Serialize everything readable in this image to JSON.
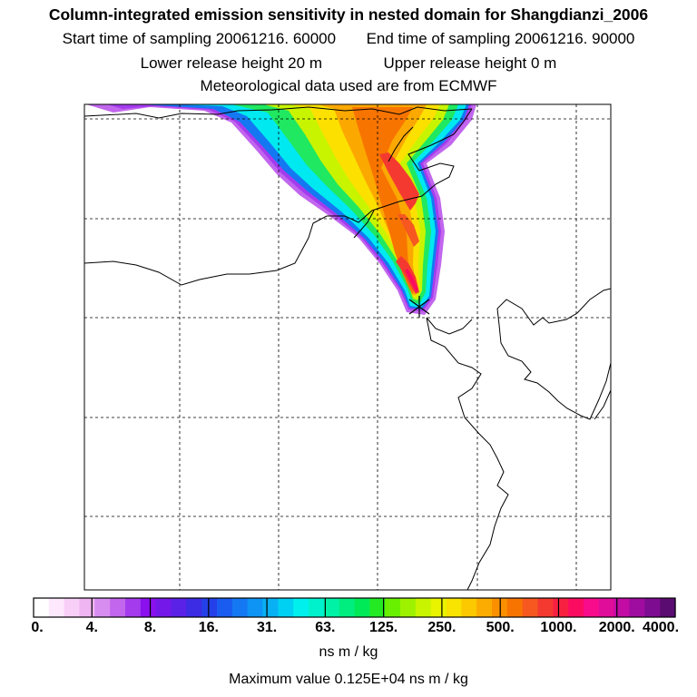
{
  "title": {
    "line1": "Column-integrated emission sensitivity in nested domain for Shangdianzi_2006",
    "start_label": "Start time of sampling 20061216. 60000",
    "end_label": "End time of sampling 20061216. 90000",
    "lower_label": "Lower release height   20 m",
    "upper_label": "Upper release height    0 m",
    "met_label": "Meteorological data used are from ECMWF"
  },
  "map": {
    "release_site": "Shangdianzi",
    "marker": "asterisk-marker"
  },
  "legend": {
    "unit": "ns m / kg",
    "max_value_text": "Maximum value  0.125E+04 ns m / kg",
    "ticks": [
      "0.",
      "4.",
      "8.",
      "16.",
      "31.",
      "63.",
      "125.",
      "250.",
      "500.",
      "1000.",
      "2000.",
      "4000."
    ],
    "colors": [
      "#ffffff",
      "#fde8fd",
      "#f7cff7",
      "#efb4f2",
      "#d78df0",
      "#c266ee",
      "#a43cee",
      "#8a10ee",
      "#7418ea",
      "#5a22e6",
      "#3c2ce4",
      "#2440e8",
      "#1a5cf0",
      "#1478f2",
      "#0e94f4",
      "#08b0f4",
      "#00d0f2",
      "#00f0ee",
      "#00f2cc",
      "#00f2a6",
      "#00ee80",
      "#00ea58",
      "#24ea24",
      "#68f000",
      "#9ef200",
      "#c8f400",
      "#e8f400",
      "#f8e400",
      "#fcc800",
      "#fcac00",
      "#fa9000",
      "#f87400",
      "#f65820",
      "#f43a30",
      "#f82040",
      "#fc0c60",
      "#f80c8c",
      "#e00c9a",
      "#c20ca4",
      "#9e0ca0",
      "#7e0c90",
      "#5a0c70"
    ]
  }
}
